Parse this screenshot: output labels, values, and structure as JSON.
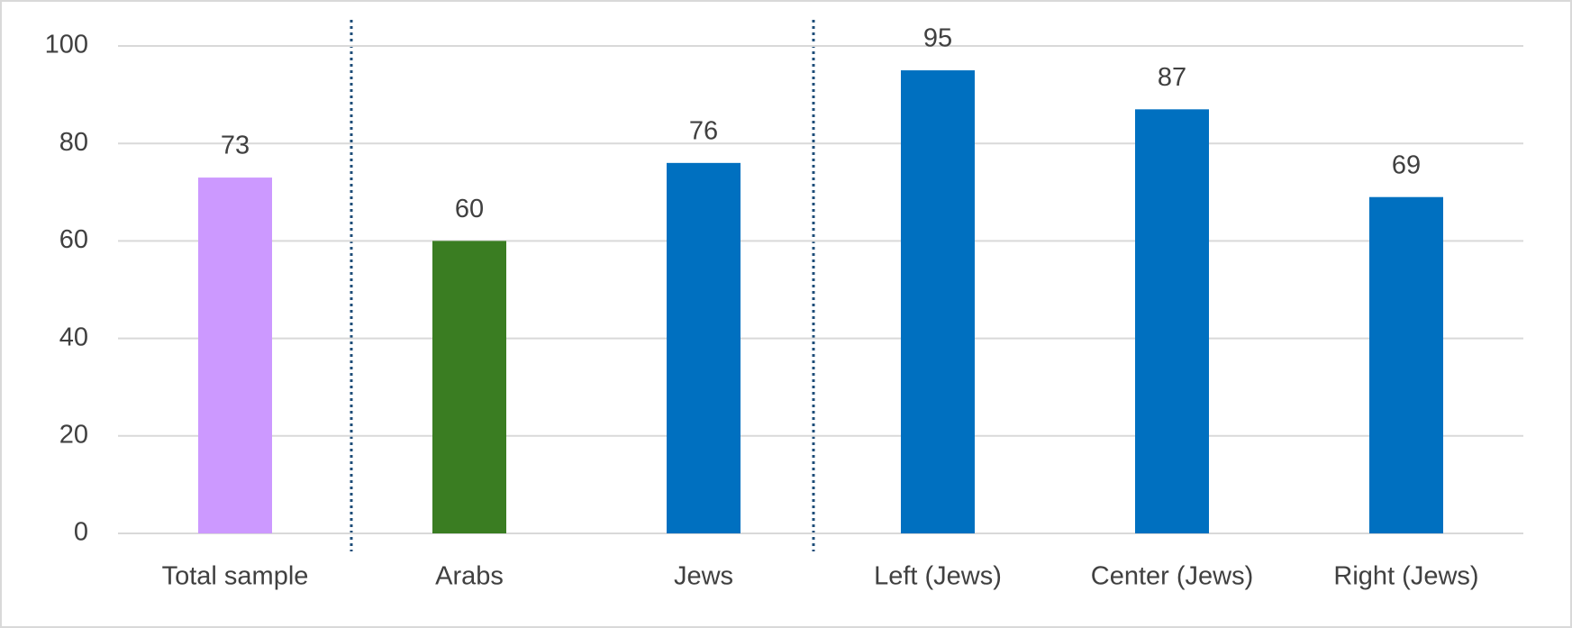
{
  "chart_data": {
    "type": "bar",
    "categories": [
      "Total sample",
      "Arabs",
      "Jews",
      "Left (Jews)",
      "Center (Jews)",
      "Right (Jews)"
    ],
    "values": [
      73,
      60,
      76,
      95,
      87,
      69
    ],
    "colors": [
      "#cc99ff",
      "#3a7d22",
      "#0070c0",
      "#0070c0",
      "#0070c0",
      "#0070c0"
    ],
    "ylim": [
      0,
      100
    ],
    "yticks": [
      0,
      20,
      40,
      60,
      80,
      100
    ],
    "grid": true
  }
}
